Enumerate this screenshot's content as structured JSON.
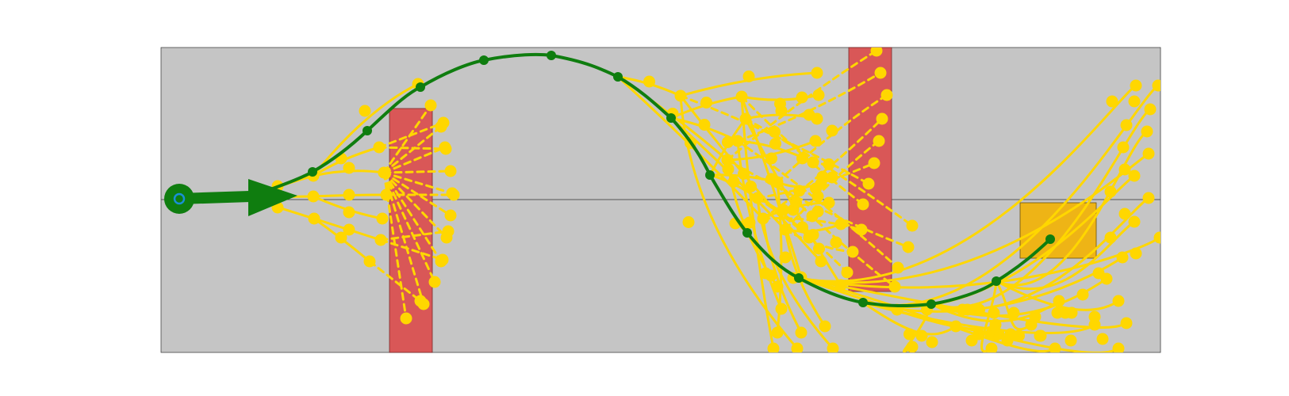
{
  "colors": {
    "background": "#c5c5c5",
    "obstacle": "#d95757",
    "goal": "#eeb416",
    "path": "#0f7d0f",
    "explored": "#ffd700",
    "start_marker": "#1a8fd6",
    "centerline": "#555555"
  },
  "icons": {
    "start": "start-marker-icon",
    "heading": "heading-arrow-icon"
  }
}
